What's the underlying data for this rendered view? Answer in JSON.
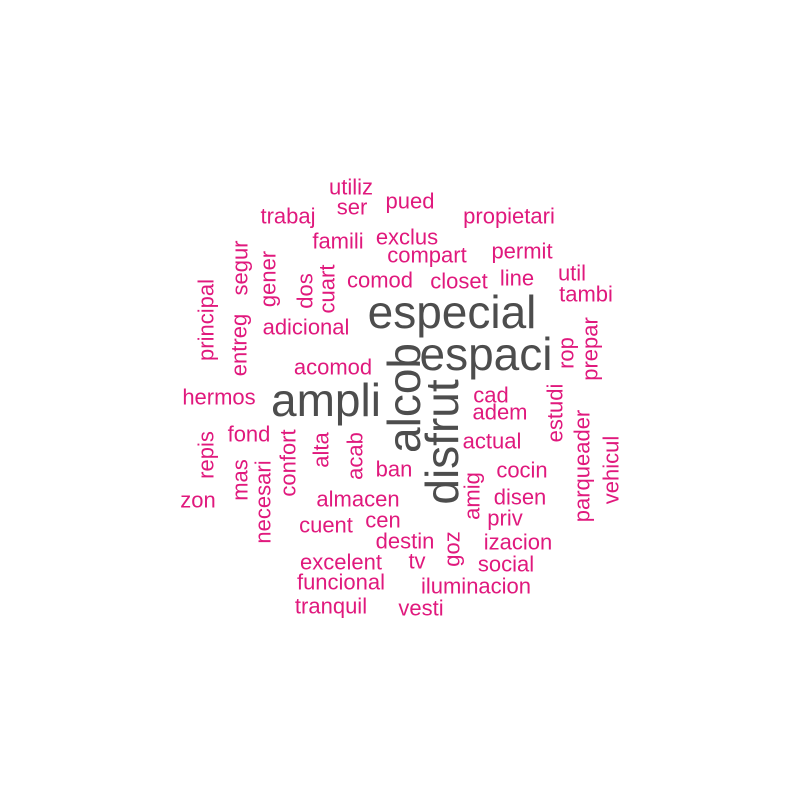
{
  "chart_data": {
    "type": "wordcloud",
    "colors": {
      "frequent": "#4d4d4d",
      "regular": "#e0197d"
    },
    "words": [
      {
        "text": "especial",
        "weight": 5,
        "vertical": false
      },
      {
        "text": "espaci",
        "weight": 5,
        "vertical": false
      },
      {
        "text": "ampli",
        "weight": 5,
        "vertical": false
      },
      {
        "text": "alcob",
        "weight": 5,
        "vertical": true
      },
      {
        "text": "disfrut",
        "weight": 5,
        "vertical": true
      },
      {
        "text": "utiliz",
        "weight": 1,
        "vertical": false
      },
      {
        "text": "ser",
        "weight": 1,
        "vertical": false
      },
      {
        "text": "pued",
        "weight": 1,
        "vertical": false
      },
      {
        "text": "trabaj",
        "weight": 1,
        "vertical": false
      },
      {
        "text": "propietari",
        "weight": 1,
        "vertical": false
      },
      {
        "text": "famili",
        "weight": 1,
        "vertical": false
      },
      {
        "text": "exclus",
        "weight": 1,
        "vertical": false
      },
      {
        "text": "compart",
        "weight": 1,
        "vertical": false
      },
      {
        "text": "permit",
        "weight": 1,
        "vertical": false
      },
      {
        "text": "segur",
        "weight": 1,
        "vertical": true
      },
      {
        "text": "gener",
        "weight": 1,
        "vertical": true
      },
      {
        "text": "dos",
        "weight": 1,
        "vertical": true
      },
      {
        "text": "cuart",
        "weight": 1,
        "vertical": true
      },
      {
        "text": "comod",
        "weight": 1,
        "vertical": false
      },
      {
        "text": "closet",
        "weight": 1,
        "vertical": false
      },
      {
        "text": "line",
        "weight": 1,
        "vertical": false
      },
      {
        "text": "util",
        "weight": 1,
        "vertical": false
      },
      {
        "text": "tambi",
        "weight": 1,
        "vertical": false
      },
      {
        "text": "principal",
        "weight": 1,
        "vertical": true
      },
      {
        "text": "entreg",
        "weight": 1,
        "vertical": true
      },
      {
        "text": "adicional",
        "weight": 1,
        "vertical": false
      },
      {
        "text": "rop",
        "weight": 1,
        "vertical": true
      },
      {
        "text": "prepar",
        "weight": 1,
        "vertical": true
      },
      {
        "text": "acomod",
        "weight": 1,
        "vertical": false
      },
      {
        "text": "hermos",
        "weight": 1,
        "vertical": false
      },
      {
        "text": "cad",
        "weight": 1,
        "vertical": false
      },
      {
        "text": "adem",
        "weight": 1,
        "vertical": false
      },
      {
        "text": "estudi",
        "weight": 1,
        "vertical": true
      },
      {
        "text": "repis",
        "weight": 1,
        "vertical": true
      },
      {
        "text": "fond",
        "weight": 1,
        "vertical": false
      },
      {
        "text": "confort",
        "weight": 1,
        "vertical": true
      },
      {
        "text": "alta",
        "weight": 1,
        "vertical": true
      },
      {
        "text": "acab",
        "weight": 1,
        "vertical": true
      },
      {
        "text": "actual",
        "weight": 1,
        "vertical": false
      },
      {
        "text": "mas",
        "weight": 1,
        "vertical": true
      },
      {
        "text": "necesari",
        "weight": 1,
        "vertical": true
      },
      {
        "text": "ban",
        "weight": 1,
        "vertical": false
      },
      {
        "text": "amig",
        "weight": 1,
        "vertical": true
      },
      {
        "text": "cocin",
        "weight": 1,
        "vertical": false
      },
      {
        "text": "parqueader",
        "weight": 1,
        "vertical": true
      },
      {
        "text": "vehicul",
        "weight": 1,
        "vertical": true
      },
      {
        "text": "zon",
        "weight": 1,
        "vertical": false
      },
      {
        "text": "almacen",
        "weight": 1,
        "vertical": false
      },
      {
        "text": "disen",
        "weight": 1,
        "vertical": false
      },
      {
        "text": "cuent",
        "weight": 1,
        "vertical": false
      },
      {
        "text": "cen",
        "weight": 1,
        "vertical": false
      },
      {
        "text": "priv",
        "weight": 1,
        "vertical": false
      },
      {
        "text": "destin",
        "weight": 1,
        "vertical": false
      },
      {
        "text": "goz",
        "weight": 1,
        "vertical": true
      },
      {
        "text": "izacion",
        "weight": 1,
        "vertical": false
      },
      {
        "text": "excelent",
        "weight": 1,
        "vertical": false
      },
      {
        "text": "tv",
        "weight": 1,
        "vertical": false
      },
      {
        "text": "social",
        "weight": 1,
        "vertical": false
      },
      {
        "text": "funcional",
        "weight": 1,
        "vertical": false
      },
      {
        "text": "iluminacion",
        "weight": 1,
        "vertical": false
      },
      {
        "text": "tranquil",
        "weight": 1,
        "vertical": false
      },
      {
        "text": "vesti",
        "weight": 1,
        "vertical": false
      }
    ]
  }
}
